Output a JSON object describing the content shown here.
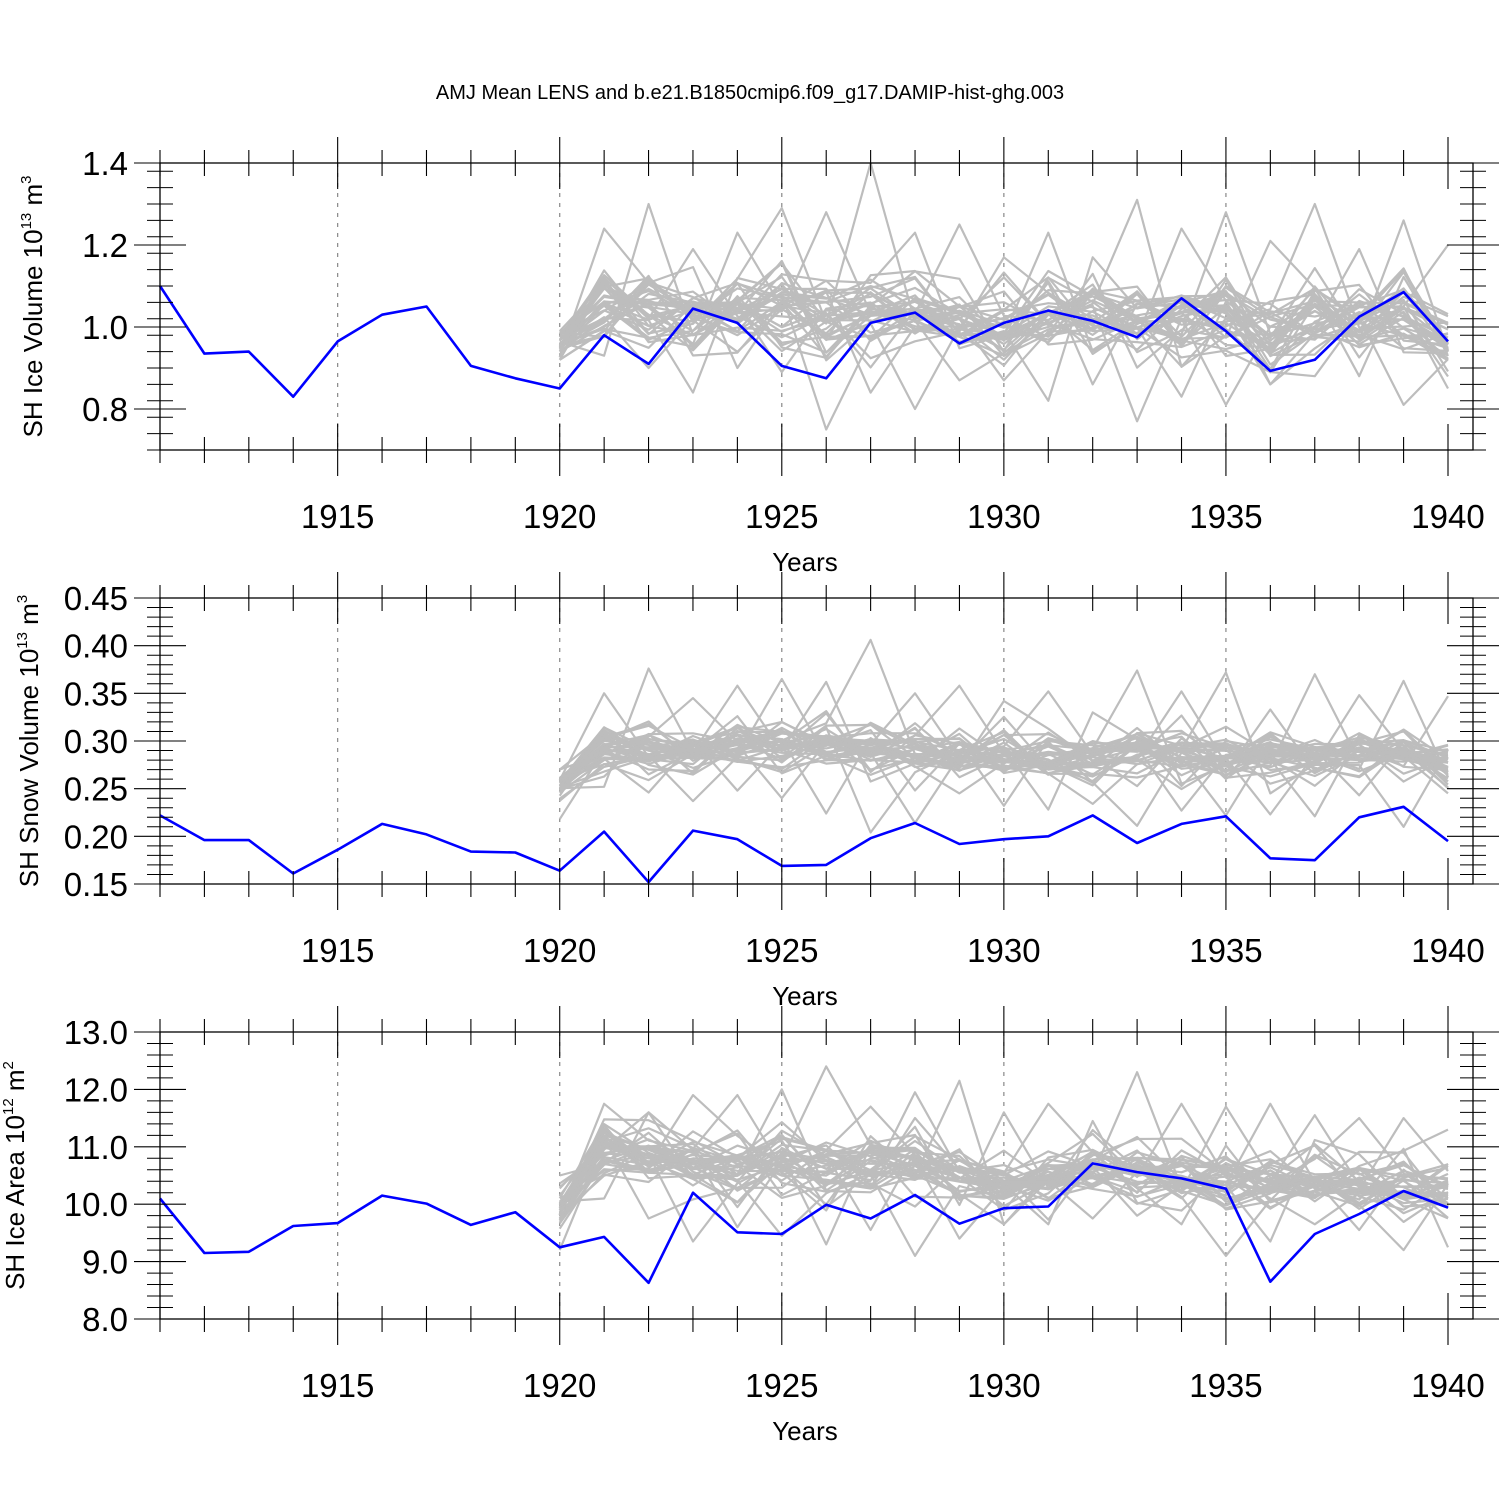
{
  "figure": {
    "title": "AMJ Mean LENS and b.e21.B1850cmip6.f09_g17.DAMIP-hist-ghg.003"
  },
  "colors": {
    "single_run": "#0000ff",
    "ensemble": "#bdbdbd",
    "axis": "#000000",
    "gridline": "#888888"
  },
  "chart_data": [
    {
      "type": "line",
      "ylabel_main": "SH Ice Volume 10",
      "ylabel_exp": "13",
      "ylabel_unit": " m",
      "ylabel_unit_exp": "3",
      "xlabel": "Years",
      "xlim": [
        1911,
        1940
      ],
      "ylim": [
        0.7,
        1.4
      ],
      "x_tick_labels": [
        "1915",
        "1920",
        "1925",
        "1930",
        "1935",
        "1940"
      ],
      "x_tick_values": [
        1915,
        1920,
        1925,
        1930,
        1935,
        1940
      ],
      "y_tick_labels": [
        "0.8",
        "1.0",
        "1.2",
        "1.4"
      ],
      "y_tick_values": [
        0.8,
        1.0,
        1.2,
        1.4
      ],
      "vertical_gridlines": [
        1915,
        1920,
        1925,
        1930,
        1935
      ],
      "series": [
        {
          "name": "b.e21.B1850cmip6.f09_g17.DAMIP-hist-ghg.003",
          "x": [
            1911,
            1912,
            1913,
            1914,
            1915,
            1916,
            1917,
            1918,
            1919,
            1920,
            1921,
            1922,
            1923,
            1924,
            1925,
            1926,
            1927,
            1928,
            1929,
            1930,
            1931,
            1932,
            1933,
            1934,
            1935,
            1936,
            1937,
            1938,
            1939,
            1940
          ],
          "values": [
            1.1,
            0.935,
            0.94,
            0.83,
            0.965,
            1.03,
            1.05,
            0.905,
            0.875,
            0.85,
            0.98,
            0.91,
            1.045,
            1.01,
            0.905,
            0.875,
            1.01,
            1.035,
            0.96,
            1.01,
            1.04,
            1.015,
            0.975,
            1.07,
            0.99,
            0.893,
            0.92,
            1.025,
            1.085,
            0.965
          ]
        }
      ],
      "ensemble": {
        "name": "LENS members",
        "members": 40,
        "x_start": 1920,
        "x_end": 1940,
        "base": [
          0.95,
          1.06,
          1.04,
          1.03,
          1.04,
          1.05,
          1.03,
          1.04,
          1.02,
          1.01,
          1.0,
          1.02,
          1.03,
          1.01,
          1.02,
          1.01,
          0.98,
          1.02,
          1.01,
          1.04,
          0.97
        ],
        "spread": [
          0.04,
          0.08,
          0.08,
          0.07,
          0.08,
          0.09,
          0.09,
          0.09,
          0.08,
          0.07,
          0.08,
          0.08,
          0.09,
          0.08,
          0.09,
          0.08,
          0.08,
          0.08,
          0.06,
          0.08,
          0.07
        ],
        "max": [
          0.99,
          1.24,
          1.3,
          1.19,
          1.23,
          1.29,
          1.28,
          1.4,
          1.23,
          1.25,
          1.17,
          1.23,
          1.17,
          1.31,
          1.24,
          1.28,
          1.21,
          1.3,
          1.19,
          1.26,
          1.2
        ],
        "min": [
          0.92,
          0.93,
          0.9,
          0.84,
          0.9,
          0.89,
          0.75,
          0.84,
          0.8,
          0.87,
          0.87,
          0.82,
          0.86,
          0.77,
          0.83,
          0.81,
          0.86,
          0.88,
          0.88,
          0.81,
          0.85
        ]
      }
    },
    {
      "type": "line",
      "ylabel_main": "SH Snow Volume 10",
      "ylabel_exp": "13",
      "ylabel_unit": " m",
      "ylabel_unit_exp": "3",
      "xlabel": "Years",
      "xlim": [
        1911,
        1940
      ],
      "ylim": [
        0.15,
        0.45
      ],
      "x_tick_labels": [
        "1915",
        "1920",
        "1925",
        "1930",
        "1935",
        "1940"
      ],
      "x_tick_values": [
        1915,
        1920,
        1925,
        1930,
        1935,
        1940
      ],
      "y_tick_labels": [
        "0.15",
        "0.20",
        "0.25",
        "0.30",
        "0.35",
        "0.40",
        "0.45"
      ],
      "y_tick_values": [
        0.15,
        0.2,
        0.25,
        0.3,
        0.35,
        0.4,
        0.45
      ],
      "vertical_gridlines": [
        1915,
        1920,
        1925,
        1930,
        1935
      ],
      "series": [
        {
          "name": "b.e21.B1850cmip6.f09_g17.DAMIP-hist-ghg.003",
          "x": [
            1911,
            1912,
            1913,
            1914,
            1915,
            1916,
            1917,
            1918,
            1919,
            1920,
            1921,
            1922,
            1923,
            1924,
            1925,
            1926,
            1927,
            1928,
            1929,
            1930,
            1931,
            1932,
            1933,
            1934,
            1935,
            1936,
            1937,
            1938,
            1939,
            1940
          ],
          "values": [
            0.222,
            0.196,
            0.196,
            0.161,
            0.186,
            0.213,
            0.202,
            0.184,
            0.183,
            0.164,
            0.205,
            0.152,
            0.206,
            0.197,
            0.169,
            0.17,
            0.198,
            0.214,
            0.192,
            0.197,
            0.2,
            0.222,
            0.193,
            0.213,
            0.221,
            0.177,
            0.175,
            0.22,
            0.231,
            0.195
          ]
        }
      ],
      "ensemble": {
        "name": "LENS members",
        "members": 40,
        "x_start": 1920,
        "x_end": 1940,
        "base": [
          0.255,
          0.295,
          0.295,
          0.29,
          0.295,
          0.295,
          0.295,
          0.29,
          0.29,
          0.285,
          0.285,
          0.285,
          0.283,
          0.29,
          0.285,
          0.28,
          0.285,
          0.283,
          0.29,
          0.29,
          0.275
        ],
        "spread": [
          0.012,
          0.022,
          0.022,
          0.02,
          0.022,
          0.022,
          0.024,
          0.024,
          0.022,
          0.02,
          0.022,
          0.022,
          0.022,
          0.024,
          0.022,
          0.022,
          0.022,
          0.022,
          0.02,
          0.02,
          0.018
        ],
        "max": [
          0.27,
          0.35,
          0.376,
          0.345,
          0.358,
          0.365,
          0.362,
          0.406,
          0.35,
          0.358,
          0.342,
          0.352,
          0.33,
          0.374,
          0.352,
          0.372,
          0.333,
          0.37,
          0.348,
          0.363,
          0.347
        ],
        "min": [
          0.218,
          0.252,
          0.246,
          0.237,
          0.248,
          0.24,
          0.224,
          0.204,
          0.214,
          0.245,
          0.232,
          0.228,
          0.234,
          0.211,
          0.227,
          0.222,
          0.223,
          0.221,
          0.243,
          0.21,
          0.245
        ]
      }
    },
    {
      "type": "line",
      "ylabel_main": "SH Ice Area 10",
      "ylabel_exp": "12",
      "ylabel_unit": " m",
      "ylabel_unit_exp": "2",
      "xlabel": "Years",
      "xlim": [
        1911,
        1940
      ],
      "ylim": [
        8.0,
        13.0
      ],
      "x_tick_labels": [
        "1915",
        "1920",
        "1925",
        "1930",
        "1935",
        "1940"
      ],
      "x_tick_values": [
        1915,
        1920,
        1925,
        1930,
        1935,
        1940
      ],
      "y_tick_labels": [
        "8.0",
        "9.0",
        "10.0",
        "11.0",
        "12.0",
        "13.0"
      ],
      "y_tick_values": [
        8.0,
        9.0,
        10.0,
        11.0,
        12.0,
        13.0
      ],
      "vertical_gridlines": [
        1915,
        1920,
        1925,
        1930,
        1935
      ],
      "series": [
        {
          "name": "b.e21.B1850cmip6.f09_g17.DAMIP-hist-ghg.003",
          "x": [
            1911,
            1912,
            1913,
            1914,
            1915,
            1916,
            1917,
            1918,
            1919,
            1920,
            1921,
            1922,
            1923,
            1924,
            1925,
            1926,
            1927,
            1928,
            1929,
            1930,
            1931,
            1932,
            1933,
            1934,
            1935,
            1936,
            1937,
            1938,
            1939,
            1940
          ],
          "values": [
            10.1,
            9.15,
            9.17,
            9.62,
            9.67,
            10.15,
            10.01,
            9.64,
            9.86,
            9.25,
            9.43,
            8.63,
            10.2,
            9.51,
            9.48,
            9.99,
            9.75,
            10.16,
            9.66,
            9.93,
            9.96,
            10.71,
            10.56,
            10.45,
            10.27,
            8.65,
            9.48,
            9.83,
            10.23,
            9.94
          ]
        }
      ],
      "ensemble": {
        "name": "LENS members",
        "members": 40,
        "x_start": 1920,
        "x_end": 1940,
        "base": [
          9.9,
          10.95,
          10.85,
          10.8,
          10.65,
          10.75,
          10.6,
          10.65,
          10.7,
          10.55,
          10.35,
          10.45,
          10.6,
          10.55,
          10.45,
          10.4,
          10.35,
          10.45,
          10.45,
          10.4,
          10.25
        ],
        "spread": [
          0.3,
          0.4,
          0.45,
          0.45,
          0.5,
          0.5,
          0.5,
          0.5,
          0.5,
          0.45,
          0.45,
          0.45,
          0.45,
          0.45,
          0.45,
          0.45,
          0.45,
          0.45,
          0.45,
          0.45,
          0.4
        ],
        "max": [
          10.5,
          11.75,
          11.6,
          11.9,
          11.9,
          12.0,
          12.4,
          11.7,
          11.95,
          12.15,
          11.6,
          11.75,
          11.45,
          12.3,
          11.75,
          11.7,
          11.75,
          11.55,
          11.5,
          11.5,
          11.3
        ],
        "min": [
          9.2,
          10.1,
          9.75,
          9.35,
          9.6,
          9.45,
          9.3,
          9.55,
          9.1,
          9.4,
          9.65,
          9.65,
          9.75,
          9.8,
          9.65,
          9.1,
          9.35,
          9.65,
          9.55,
          9.2,
          9.25
        ]
      }
    }
  ]
}
